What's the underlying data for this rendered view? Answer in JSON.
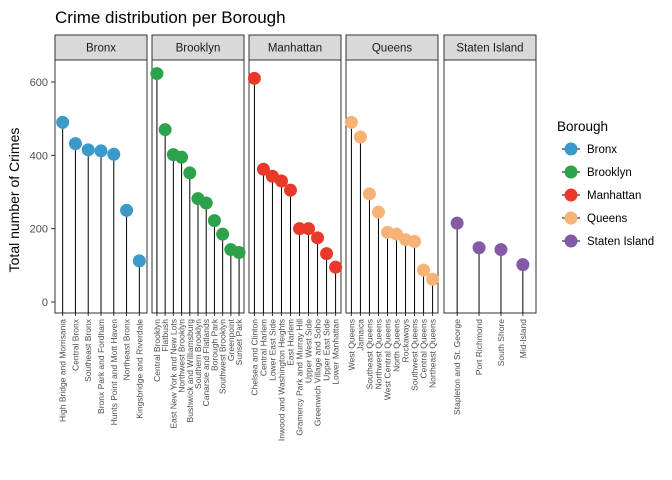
{
  "chart_data": {
    "type": "lollipop",
    "title": "Crime distribution per Borough",
    "ylabel": "Total number of Crimes",
    "xlabel": "",
    "ylim": [
      -30,
      660
    ],
    "yticks": [
      0,
      200,
      400,
      600
    ],
    "legend": {
      "title": "Borough",
      "placement": "right",
      "entries": [
        {
          "name": "Bronx",
          "color": "#3B9AC9"
        },
        {
          "name": "Brooklyn",
          "color": "#2CA24C"
        },
        {
          "name": "Manhattan",
          "color": "#E8392A"
        },
        {
          "name": "Queens",
          "color": "#F7B276"
        },
        {
          "name": "Staten Island",
          "color": "#8459A6"
        }
      ]
    },
    "panels": [
      {
        "name": "Bronx",
        "color": "#3B9AC9",
        "categories": [
          "High Bridge and Morrisania",
          "Central Bronx",
          "Southeast Bronx",
          "Bronx Park and Fordham",
          "Hunts Point and Mott Haven",
          "Northeast Bronx",
          "Kingsbridge and Riverdale"
        ],
        "values": [
          490,
          432,
          415,
          412,
          403,
          250,
          112
        ]
      },
      {
        "name": "Brooklyn",
        "color": "#2CA24C",
        "categories": [
          "Central Brooklyn",
          "Flatbush",
          "East New York and New Lots",
          "Northwest Brooklyn",
          "Bushwick and Williamsburg",
          "Southern Brooklyn",
          "Canarsie and Flatlands",
          "Borough Park",
          "Southwest Brooklyn",
          "Greenpoint",
          "Sunset Park"
        ],
        "values": [
          623,
          470,
          402,
          395,
          352,
          282,
          270,
          222,
          185,
          143,
          135
        ]
      },
      {
        "name": "Manhattan",
        "color": "#E8392A",
        "categories": [
          "Chelsea and Clinton",
          "Central Harlem",
          "Lower East Side",
          "Inwood and Washington Heights",
          "East Harlem",
          "Gramercy Park and Murray Hill",
          "Upper West Side",
          "Greenwich Village and Soho",
          "Upper East Side",
          "Lower Manhattan"
        ],
        "values": [
          610,
          362,
          343,
          330,
          305,
          200,
          200,
          175,
          132,
          95
        ]
      },
      {
        "name": "Queens",
        "color": "#F7B276",
        "categories": [
          "West Queens",
          "Jamaica",
          "Southeast Queens",
          "Northwest Queens",
          "West Central Queens",
          "North Queens",
          "Rockaways",
          "Southwest Queens",
          "Central Queens",
          "Northeast Queens"
        ],
        "values": [
          490,
          450,
          295,
          245,
          190,
          185,
          170,
          165,
          87,
          62
        ]
      },
      {
        "name": "Staten Island",
        "color": "#8459A6",
        "categories": [
          "Stapleton and St. George",
          "Port Richmond",
          "South Shore",
          "Mid-Island"
        ],
        "values": [
          215,
          148,
          143,
          102
        ]
      }
    ]
  }
}
